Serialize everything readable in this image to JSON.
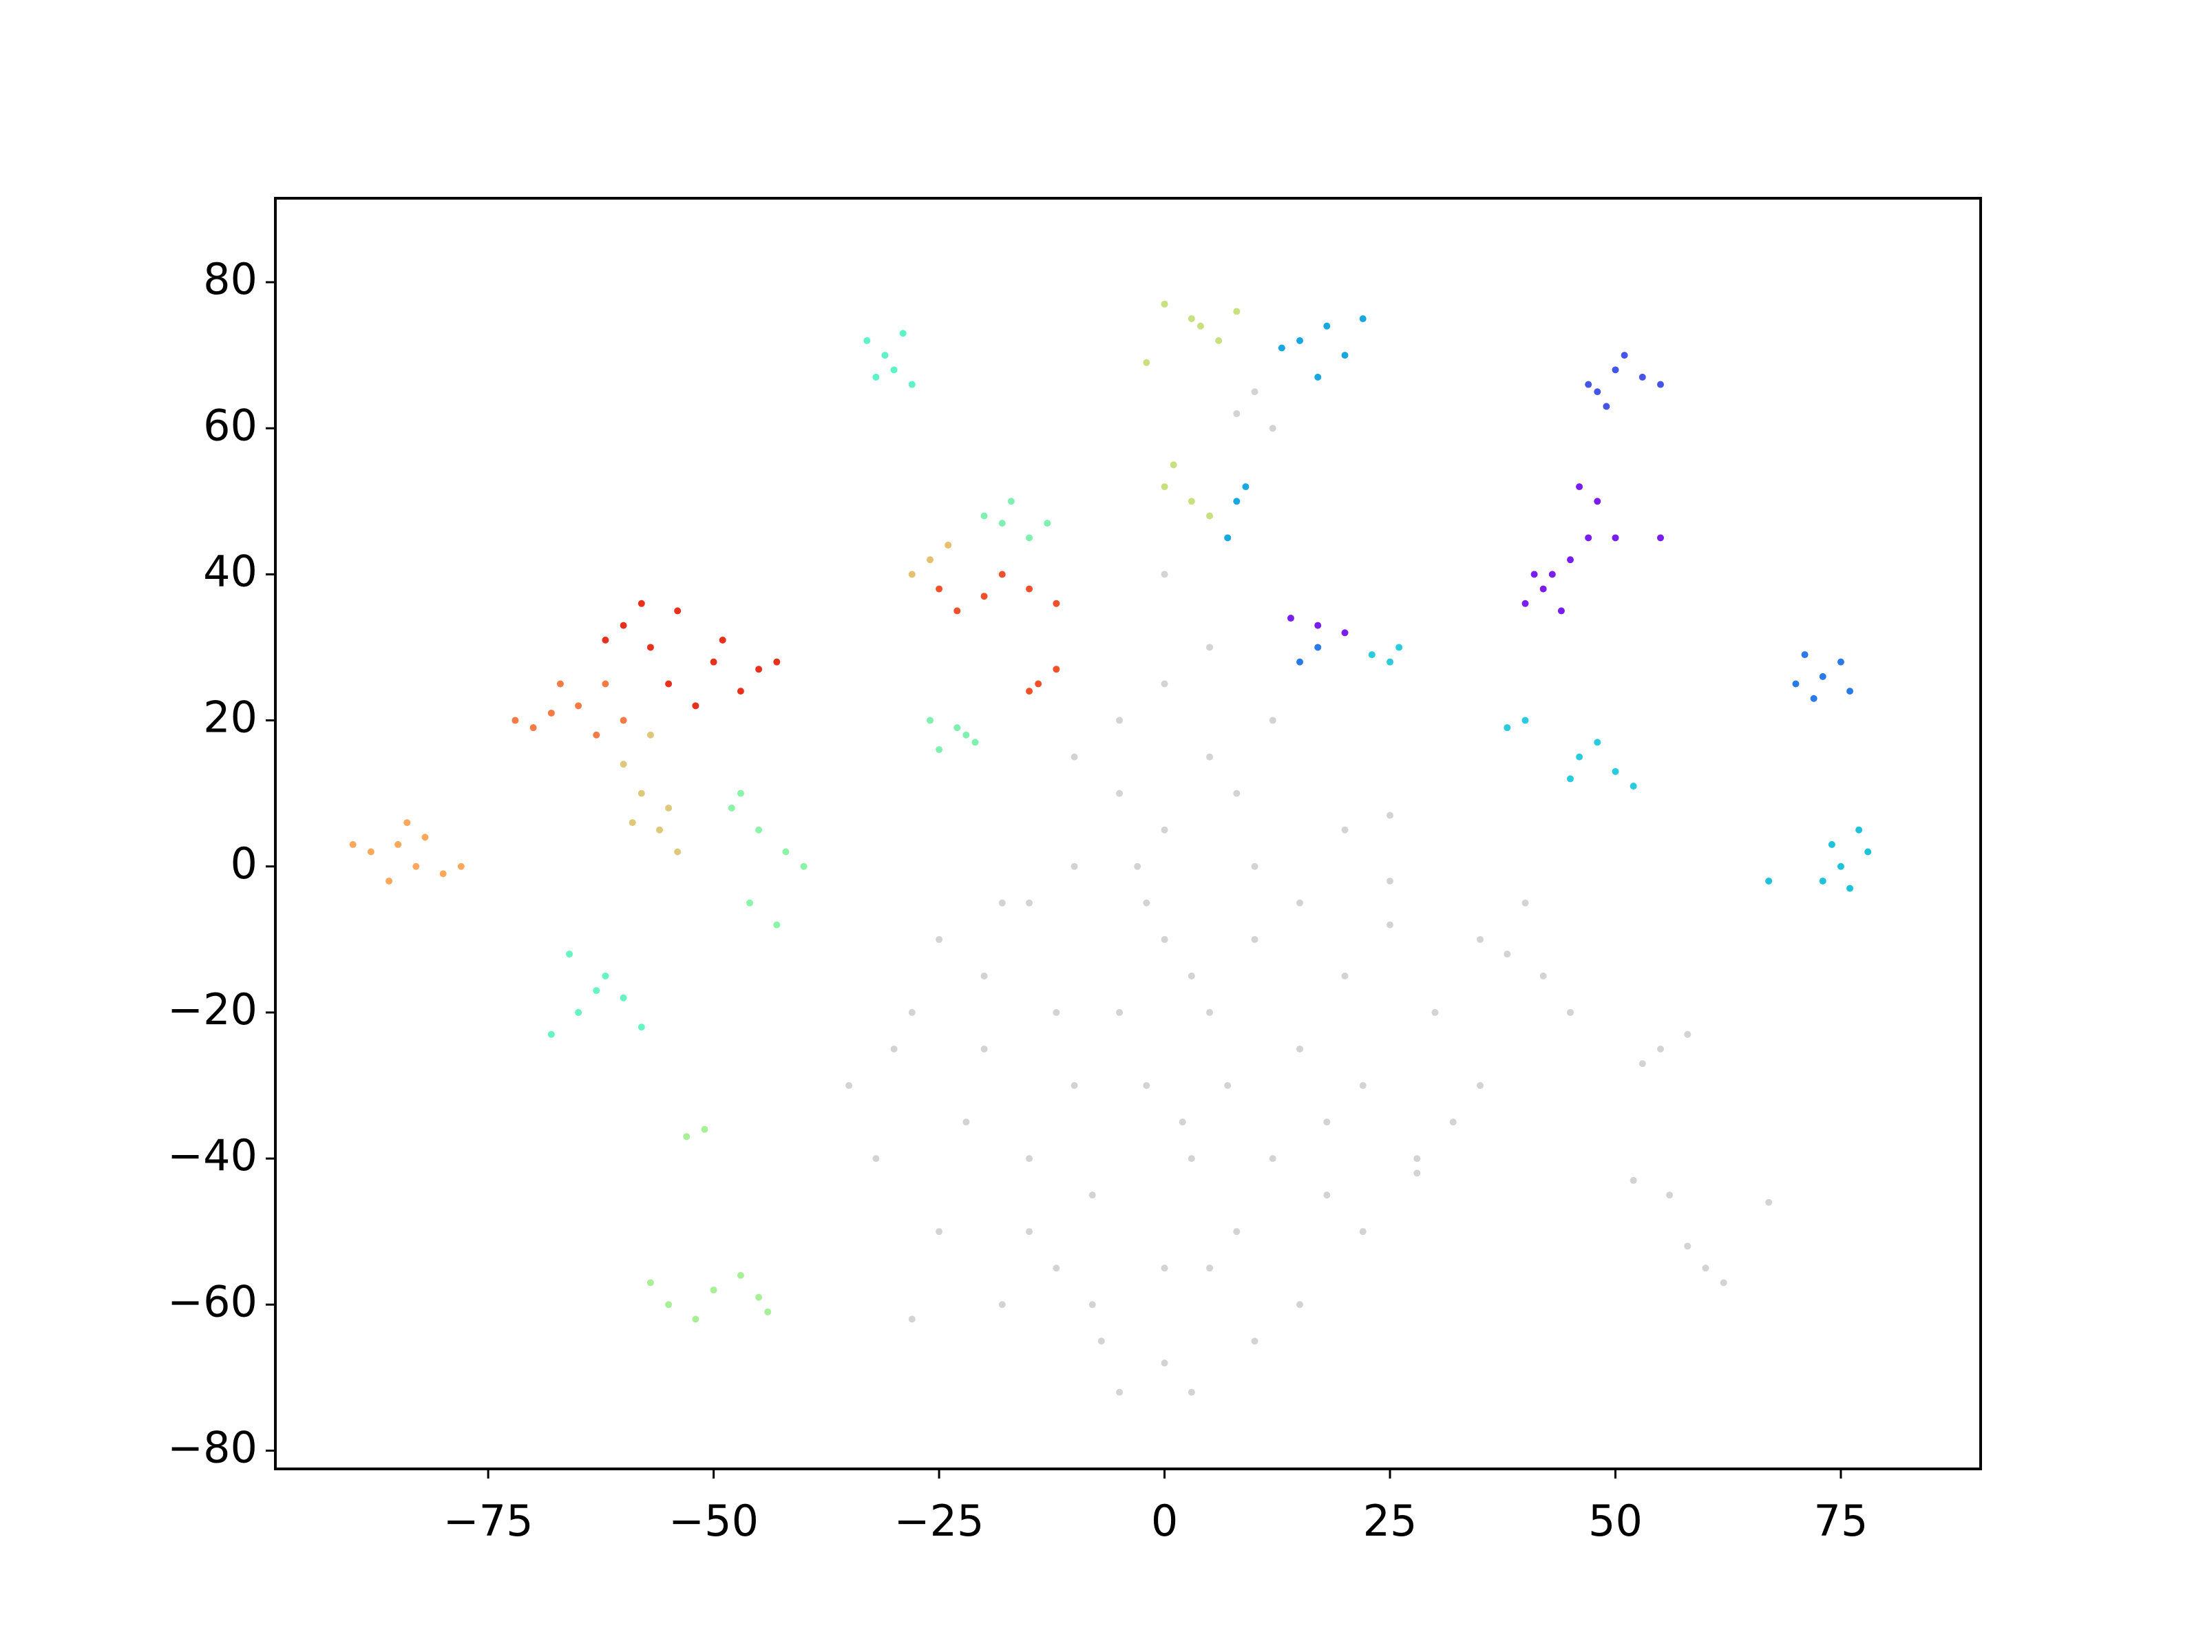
{
  "chart_data": {
    "type": "scatter",
    "xlim": [
      -98.6,
      90.5
    ],
    "ylim": [
      -82.5,
      91.5
    ],
    "xticks": [
      {
        "value": -75,
        "label": "−75"
      },
      {
        "value": -50,
        "label": "−50"
      },
      {
        "value": -25,
        "label": "−25"
      },
      0,
      25,
      50,
      75
    ],
    "yticks": [
      {
        "value": -80,
        "label": "−80"
      },
      {
        "value": -60,
        "label": "−60"
      },
      {
        "value": -40,
        "label": "−40"
      },
      {
        "value": -20,
        "label": "−20"
      },
      0,
      20,
      40,
      60,
      80
    ],
    "series": [
      {
        "color": "#d3d3d3",
        "x": [
          -30,
          -25,
          -20,
          -15,
          -10,
          -5,
          0,
          5,
          10,
          -5,
          -2,
          3,
          8,
          -8,
          -12,
          -18,
          -28,
          -32,
          -35,
          -22,
          15,
          20,
          25,
          30,
          35,
          38,
          42,
          28,
          22,
          15,
          10,
          0,
          -5,
          5,
          12,
          18,
          -10,
          -15,
          -20,
          -25,
          0,
          5,
          10,
          15,
          20,
          25,
          -5,
          0,
          5,
          -3,
          8,
          12,
          -8,
          0,
          55,
          58,
          53,
          52,
          56,
          60,
          62,
          58,
          25,
          28,
          32,
          -2,
          2,
          -12,
          -28,
          7,
          45,
          40,
          35,
          -7,
          3,
          22,
          18,
          12,
          10,
          8,
          -18,
          67,
          0,
          -10,
          3,
          -15
        ],
        "values": [
          -25,
          -10,
          -15,
          -5,
          0,
          10,
          5,
          15,
          0,
          -20,
          -30,
          -40,
          -50,
          -45,
          -55,
          -60,
          -62,
          -40,
          -30,
          -35,
          -25,
          -15,
          -8,
          -20,
          -30,
          -12,
          -15,
          -40,
          -50,
          -60,
          -65,
          -68,
          -72,
          -55,
          -40,
          -35,
          -30,
          -40,
          -25,
          -50,
          -10,
          -20,
          -10,
          -5,
          5,
          -2,
          20,
          25,
          30,
          0,
          10,
          20,
          -60,
          -55,
          -25,
          -23,
          -27,
          -43,
          -45,
          -55,
          -57,
          -52,
          7,
          -42,
          -35,
          -5,
          -35,
          -20,
          -20,
          -30,
          -20,
          -5,
          -10,
          -65,
          -72,
          -30,
          -45,
          60,
          65,
          62,
          -5,
          -46,
          40,
          15,
          -15,
          -50
        ]
      },
      {
        "color": "#e8301c",
        "x": [
          -57,
          -55,
          -60,
          -50,
          -45,
          -52,
          -58,
          -47,
          -43,
          -62,
          -54,
          -49
        ],
        "values": [
          30,
          25,
          33,
          28,
          27,
          22,
          36,
          24,
          28,
          31,
          35,
          31
        ]
      },
      {
        "color": "#f57a45",
        "x": [
          -65,
          -70,
          -62,
          -60,
          -67,
          -72,
          -63,
          -68
        ],
        "values": [
          22,
          19,
          25,
          20,
          25,
          20,
          18,
          21
        ]
      },
      {
        "color": "#fda85c",
        "x": [
          -85,
          -83,
          -88,
          -82,
          -80,
          -86,
          -78,
          -84,
          -90
        ],
        "values": [
          3,
          0,
          2,
          4,
          -1,
          -2,
          0,
          6,
          3
        ]
      },
      {
        "color": "#dec87a",
        "x": [
          -58,
          -56,
          -60,
          -54,
          -57,
          -55,
          -59
        ],
        "values": [
          10,
          5,
          14,
          2,
          18,
          8,
          6
        ]
      },
      {
        "color": "#8af5a8",
        "x": [
          -45,
          -42,
          -48,
          -40,
          -46,
          -43,
          -47
        ],
        "values": [
          5,
          2,
          8,
          0,
          -5,
          -8,
          10
        ]
      },
      {
        "color": "#66f5c0",
        "x": [
          -65,
          -62,
          -68,
          -60,
          -66,
          -58,
          -63
        ],
        "values": [
          -20,
          -15,
          -23,
          -18,
          -12,
          -22,
          -17
        ]
      },
      {
        "color": "#a8f098",
        "x": [
          -50,
          -55,
          -45,
          -52,
          -47,
          -51,
          -53,
          -57,
          -44
        ],
        "values": [
          -58,
          -60,
          -59,
          -62,
          -56,
          -36,
          -37,
          -57,
          -61
        ]
      },
      {
        "color": "#5ef2c8",
        "x": [
          -31,
          -30,
          -33,
          -28,
          -32,
          -29
        ],
        "values": [
          70,
          68,
          72,
          66,
          67,
          73
        ]
      },
      {
        "color": "#80f0b0",
        "x": [
          -18,
          -15,
          -20,
          -13,
          -17,
          -22,
          -23,
          -26,
          -25,
          -21
        ],
        "values": [
          47,
          45,
          48,
          47,
          50,
          18,
          19,
          20,
          16,
          17
        ]
      },
      {
        "color": "#f0502a",
        "x": [
          -20,
          -15,
          -23,
          -12,
          -18,
          -25,
          -14,
          -12,
          -15
        ],
        "values": [
          37,
          38,
          35,
          36,
          40,
          38,
          25,
          27,
          24
        ]
      },
      {
        "color": "#e6c070",
        "x": [
          -26,
          -28,
          -24
        ],
        "values": [
          42,
          40,
          44
        ]
      },
      {
        "color": "#c8e07e",
        "x": [
          3,
          6,
          0,
          8,
          -2,
          3,
          0,
          5,
          1,
          4
        ],
        "values": [
          75,
          72,
          77,
          76,
          69,
          50,
          52,
          48,
          55,
          74
        ]
      },
      {
        "color": "#18a8e0",
        "x": [
          15,
          18,
          20,
          13,
          22,
          17,
          8,
          7,
          9
        ],
        "values": [
          72,
          74,
          70,
          71,
          75,
          67,
          50,
          45,
          52
        ]
      },
      {
        "color": "#4455e8",
        "x": [
          47,
          50,
          53,
          49,
          55,
          51,
          48
        ],
        "values": [
          66,
          68,
          67,
          63,
          66,
          70,
          65
        ]
      },
      {
        "color": "#7a1ef0",
        "x": [
          42,
          45,
          40,
          47,
          43,
          48,
          46,
          50,
          55,
          17,
          20,
          14,
          44,
          41
        ],
        "values": [
          38,
          42,
          36,
          45,
          40,
          50,
          52,
          45,
          45,
          33,
          32,
          34,
          35,
          40
        ]
      },
      {
        "color": "#2acbdc",
        "x": [
          25,
          23,
          26,
          46,
          50,
          48,
          52,
          40,
          38,
          45
        ],
        "values": [
          28,
          29,
          30,
          15,
          13,
          17,
          11,
          20,
          19,
          12
        ]
      },
      {
        "color": "#2a7ae8",
        "x": [
          73,
          70,
          75,
          72,
          76,
          15,
          17,
          71
        ],
        "values": [
          26,
          25,
          28,
          23,
          24,
          28,
          30,
          29
        ]
      },
      {
        "color": "#1ec3da",
        "x": [
          75,
          78,
          73,
          77,
          76,
          67,
          74
        ],
        "values": [
          0,
          2,
          -2,
          5,
          -3,
          -2,
          3
        ]
      }
    ]
  }
}
